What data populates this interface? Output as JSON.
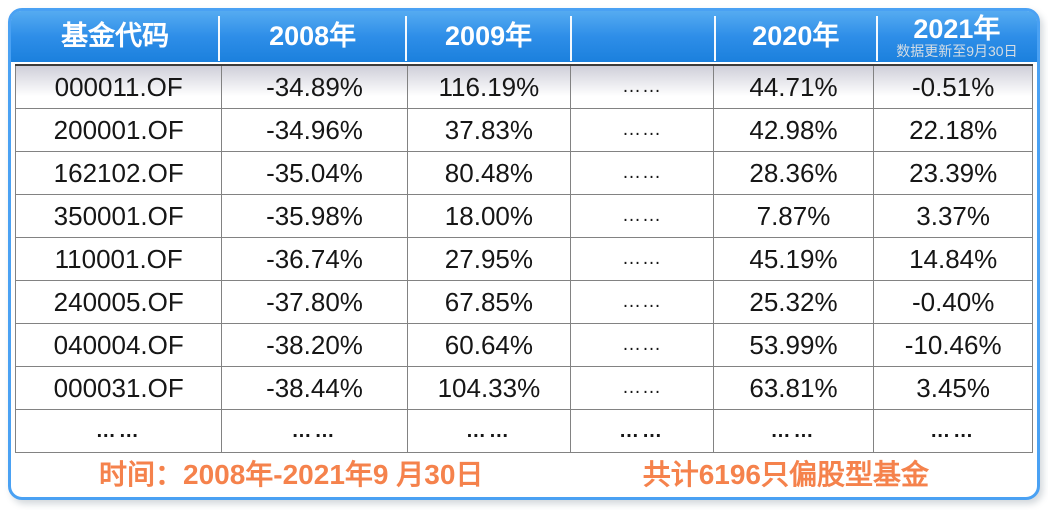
{
  "panel": {
    "description_colors": {
      "frame_blue": "#4AA1F3",
      "header_blue_top": "#55ABF1",
      "header_blue_bottom": "#1B80DD",
      "accent_orange": "#F5824C",
      "first_row_gradient_top": "#CFCFD9",
      "grid_line_gray": "#828282"
    }
  },
  "table": {
    "columns": [
      {
        "label": "基金代码",
        "sub": ""
      },
      {
        "label": "2008年",
        "sub": ""
      },
      {
        "label": "2009年",
        "sub": ""
      },
      {
        "label": "",
        "sub": ""
      },
      {
        "label": "2020年",
        "sub": ""
      },
      {
        "label": "2021年",
        "sub": "数据更新至9月30日"
      }
    ],
    "rows": [
      [
        "000011.OF",
        "-34.89%",
        "116.19%",
        "……",
        "44.71%",
        "-0.51%"
      ],
      [
        "200001.OF",
        "-34.96%",
        "37.83%",
        "……",
        "42.98%",
        "22.18%"
      ],
      [
        "162102.OF",
        "-35.04%",
        "80.48%",
        "……",
        "28.36%",
        "23.39%"
      ],
      [
        "350001.OF",
        "-35.98%",
        "18.00%",
        "……",
        "7.87%",
        "3.37%"
      ],
      [
        "110001.OF",
        "-36.74%",
        "27.95%",
        "……",
        "45.19%",
        "14.84%"
      ],
      [
        "240005.OF",
        "-37.80%",
        "67.85%",
        "……",
        "25.32%",
        "-0.40%"
      ],
      [
        "040004.OF",
        "-38.20%",
        "60.64%",
        "……",
        "53.99%",
        "-10.46%"
      ],
      [
        "000031.OF",
        "-38.44%",
        "104.33%",
        "……",
        "63.81%",
        "3.45%"
      ]
    ],
    "ellipsis_row": [
      "……",
      "……",
      "……",
      "……",
      "……",
      "……"
    ]
  },
  "footer": {
    "left": "时间：2008年-2021年9 月30日",
    "right": "共计6196只偏股型基金"
  },
  "chart_data": {
    "type": "table",
    "title": "偏股型基金年度收益率",
    "columns": [
      "基金代码",
      "2008年",
      "2009年",
      "",
      "2020年",
      "2021年"
    ],
    "column_note_2021": "数据更新至9月30日",
    "rows": [
      [
        "000011.OF",
        "-34.89%",
        "116.19%",
        "……",
        "44.71%",
        "-0.51%"
      ],
      [
        "200001.OF",
        "-34.96%",
        "37.83%",
        "……",
        "42.98%",
        "22.18%"
      ],
      [
        "162102.OF",
        "-35.04%",
        "80.48%",
        "……",
        "28.36%",
        "23.39%"
      ],
      [
        "350001.OF",
        "-35.98%",
        "18.00%",
        "……",
        "7.87%",
        "3.37%"
      ],
      [
        "110001.OF",
        "-36.74%",
        "27.95%",
        "……",
        "45.19%",
        "14.84%"
      ],
      [
        "240005.OF",
        "-37.80%",
        "67.85%",
        "……",
        "25.32%",
        "-0.40%"
      ],
      [
        "040004.OF",
        "-38.20%",
        "60.64%",
        "……",
        "53.99%",
        "-10.46%"
      ],
      [
        "000031.OF",
        "-38.44%",
        "104.33%",
        "……",
        "63.81%",
        "3.45%"
      ]
    ],
    "footnotes": [
      "时间：2008年-2021年9 月30日",
      "共计6196只偏股型基金"
    ]
  }
}
